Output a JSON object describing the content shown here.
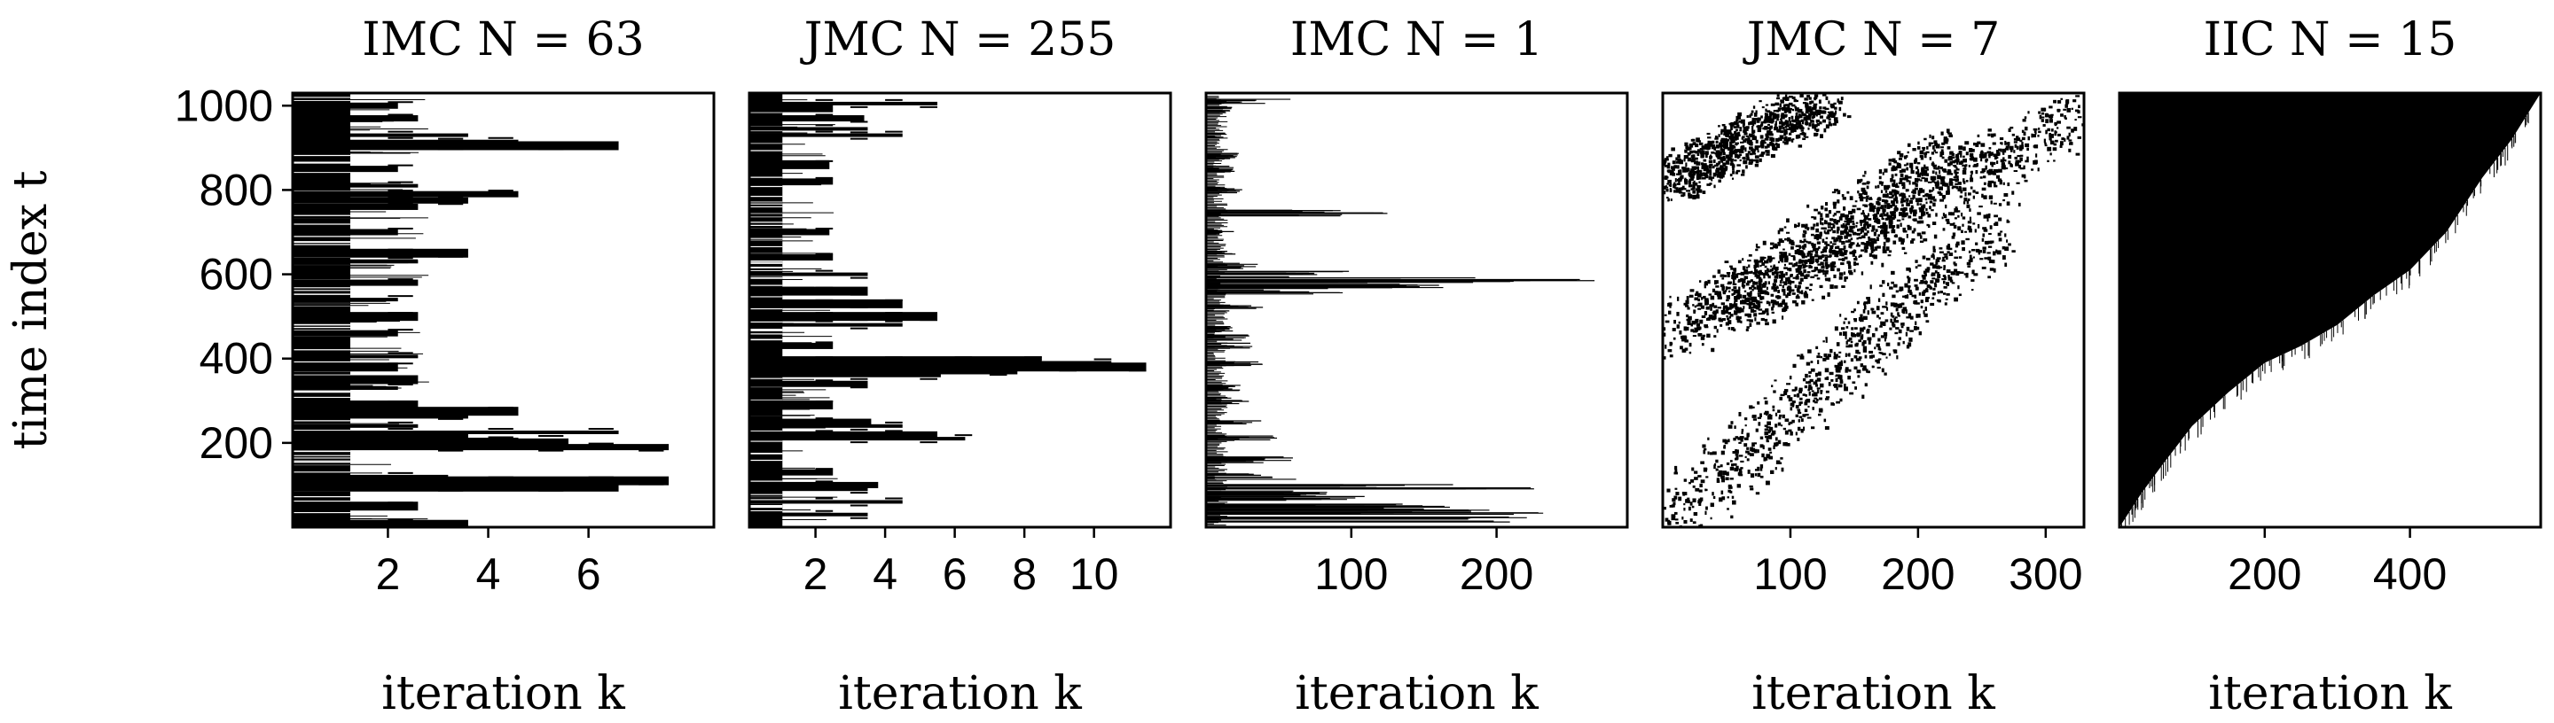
{
  "chart_data": [
    {
      "type": "scatter",
      "title": "IMC N = 63",
      "xlabel": "iteration k",
      "ylabel": "time index t",
      "xlim": [
        0.1,
        8.5
      ],
      "ylim": [
        0,
        1030
      ],
      "xticks": [
        2,
        4,
        6
      ],
      "yticks": [
        200,
        400,
        600,
        800,
        1000
      ],
      "pattern": "blocky",
      "bars": [
        [
          10,
          3.6
        ],
        [
          50,
          2.6
        ],
        [
          100,
          4.6
        ],
        [
          110,
          7.6
        ],
        [
          95,
          6.6
        ],
        [
          120,
          3.2
        ],
        [
          190,
          7.6
        ],
        [
          200,
          5.6
        ],
        [
          205,
          4.6
        ],
        [
          215,
          3.6
        ],
        [
          225,
          6.6
        ],
        [
          240,
          2.6
        ],
        [
          265,
          3.6
        ],
        [
          275,
          4.6
        ],
        [
          290,
          2.6
        ],
        [
          330,
          2.2
        ],
        [
          350,
          2.6
        ],
        [
          380,
          2.2
        ],
        [
          405,
          2.6
        ],
        [
          460,
          2.2
        ],
        [
          500,
          2.6
        ],
        [
          540,
          2.2
        ],
        [
          580,
          2.6
        ],
        [
          630,
          2.6
        ],
        [
          650,
          3.6
        ],
        [
          700,
          2.2
        ],
        [
          760,
          2.6
        ],
        [
          775,
          3.6
        ],
        [
          790,
          4.6
        ],
        [
          810,
          2.6
        ],
        [
          850,
          2.2
        ],
        [
          905,
          6.6
        ],
        [
          915,
          4.6
        ],
        [
          930,
          3.6
        ],
        [
          970,
          2.6
        ],
        [
          1000,
          2.2
        ]
      ],
      "base_width": 1.25
    },
    {
      "type": "scatter",
      "title": "JMC N = 255",
      "xlabel": "iteration k",
      "ylabel": "",
      "xlim": [
        0.1,
        12.2
      ],
      "ylim": [
        0,
        1030
      ],
      "xticks": [
        2,
        4,
        6,
        8,
        10
      ],
      "yticks": [],
      "pattern": "blocky",
      "bars": [
        [
          30,
          3.5
        ],
        [
          60,
          4.5
        ],
        [
          90,
          3.5
        ],
        [
          100,
          3.8
        ],
        [
          130,
          2.5
        ],
        [
          210,
          6.3
        ],
        [
          220,
          5.5
        ],
        [
          240,
          4.5
        ],
        [
          250,
          3.6
        ],
        [
          290,
          2.5
        ],
        [
          340,
          3.5
        ],
        [
          360,
          5.6
        ],
        [
          370,
          7.8
        ],
        [
          380,
          11.5
        ],
        [
          390,
          10.5
        ],
        [
          395,
          8.5
        ],
        [
          430,
          2.5
        ],
        [
          480,
          4.5
        ],
        [
          500,
          5.5
        ],
        [
          530,
          4.5
        ],
        [
          560,
          3.5
        ],
        [
          600,
          3.5
        ],
        [
          640,
          2.5
        ],
        [
          700,
          2.4
        ],
        [
          820,
          2.5
        ],
        [
          860,
          2.4
        ],
        [
          930,
          4.5
        ],
        [
          945,
          3.5
        ],
        [
          970,
          3.4
        ],
        [
          995,
          2.5
        ],
        [
          1005,
          5.5
        ]
      ],
      "base_width": 1.05
    },
    {
      "type": "scatter",
      "title": "IMC N = 1",
      "xlabel": "iteration k",
      "ylabel": "",
      "xlim": [
        0,
        290
      ],
      "ylim": [
        0,
        1030
      ],
      "xticks": [
        100,
        200
      ],
      "yticks": [],
      "pattern": "sparse",
      "bars": [
        [
          18,
          230
        ],
        [
          28,
          240
        ],
        [
          40,
          200
        ],
        [
          50,
          170
        ],
        [
          70,
          110
        ],
        [
          80,
          90
        ],
        [
          95,
          230
        ],
        [
          120,
          80
        ],
        [
          160,
          60
        ],
        [
          210,
          50
        ],
        [
          250,
          40
        ],
        [
          300,
          30
        ],
        [
          330,
          25
        ],
        [
          390,
          45
        ],
        [
          430,
          35
        ],
        [
          450,
          30
        ],
        [
          470,
          20
        ],
        [
          520,
          40
        ],
        [
          560,
          110
        ],
        [
          575,
          180
        ],
        [
          585,
          285
        ],
        [
          600,
          110
        ],
        [
          620,
          40
        ],
        [
          650,
          30
        ],
        [
          700,
          20
        ],
        [
          745,
          130
        ],
        [
          800,
          30
        ],
        [
          850,
          20
        ],
        [
          880,
          25
        ],
        [
          930,
          15
        ],
        [
          990,
          20
        ],
        [
          1010,
          60
        ]
      ]
    },
    {
      "type": "scatter",
      "title": "JMC N = 7",
      "xlabel": "iteration k",
      "ylabel": "",
      "xlim": [
        0,
        330
      ],
      "ylim": [
        0,
        1030
      ],
      "xticks": [
        100,
        200,
        300
      ],
      "yticks": [],
      "pattern": "diagonal",
      "bands": [
        {
          "x0": 0,
          "y0": 0,
          "x1": 260,
          "y1": 730,
          "spread": 45
        },
        {
          "x0": 0,
          "y0": 450,
          "x1": 230,
          "y1": 900,
          "spread": 40
        },
        {
          "x0": 60,
          "y0": 520,
          "x1": 330,
          "y1": 990,
          "spread": 40
        },
        {
          "x0": 0,
          "y0": 820,
          "x1": 130,
          "y1": 1020,
          "spread": 35
        }
      ]
    },
    {
      "type": "area",
      "title": "IIC N = 15",
      "xlabel": "iteration k",
      "ylabel": "",
      "xlim": [
        0,
        580
      ],
      "ylim": [
        0,
        1030
      ],
      "xticks": [
        200,
        400
      ],
      "yticks": [],
      "pattern": "fill",
      "x": [
        0,
        30,
        60,
        100,
        150,
        200,
        250,
        300,
        350,
        400,
        450,
        500,
        540,
        580
      ],
      "y": [
        0,
        80,
        150,
        240,
        320,
        390,
        430,
        480,
        550,
        610,
        700,
        830,
        920,
        1030
      ]
    }
  ]
}
